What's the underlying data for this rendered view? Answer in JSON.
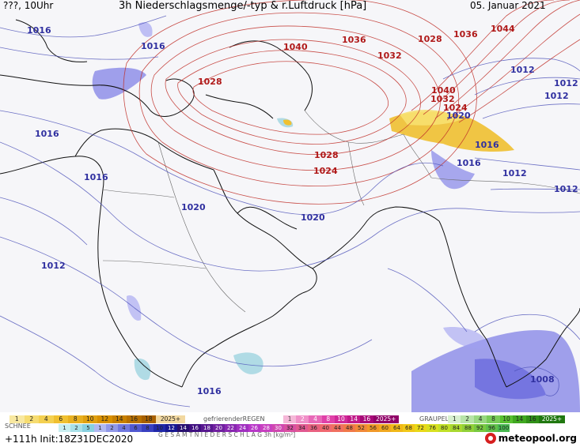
{
  "header": {
    "left": "???, 10Uhr",
    "title": "3h Niederschlagsmenge/-typ & r.Luftdruck [hPa]",
    "date": "05. Januar 2021"
  },
  "isobar_labels_red": [
    "1028",
    "1040",
    "1036",
    "1032",
    "1028",
    "1036",
    "1044",
    "1040",
    "1032",
    "1024",
    "1028",
    "1024"
  ],
  "isobar_labels_blue": [
    "1016",
    "1016",
    "1016",
    "1016",
    "1012",
    "1012",
    "1012",
    "1020",
    "1016",
    "1016",
    "1012",
    "1012",
    "1020",
    "1020",
    "1012",
    "1016",
    "1008"
  ],
  "legend": {
    "snow_label": "SCHNEE",
    "snow_values": [
      "1",
      "2",
      "4",
      "6",
      "8",
      "10",
      "12",
      "14",
      "16",
      "18",
      "2025+"
    ],
    "freezing_label": "gefrierenderREGEN",
    "freezing_values": [
      "1",
      "2",
      "4",
      "8",
      "10",
      "14",
      "16",
      "2025+"
    ],
    "graupel_label": "GRAUPEL",
    "graupel_values": [
      "1",
      "2",
      "4",
      "8",
      "10",
      "14",
      "16",
      "2025+"
    ],
    "total_label": "G E S A M T N I E D E R S C H L A G   3h   [kg/m²]",
    "total_values": [
      "1",
      "2",
      "5",
      "1",
      "2",
      "4",
      "6",
      "8",
      "10",
      "12",
      "14",
      "16",
      "18",
      "20",
      "22",
      "24",
      "26",
      "28",
      "30",
      "32",
      "34",
      "36",
      "40",
      "44",
      "48",
      "52",
      "56",
      "60",
      "64",
      "68",
      "72",
      "76",
      "80",
      "84",
      "88",
      "92",
      "96",
      "100"
    ]
  },
  "footer": {
    "run": "+111h  Init:18Z31DEC2020",
    "brand": "meteopool.org"
  },
  "colors": {
    "isobar_high": "#c0302a",
    "isobar_low": "#4a4fb8",
    "snow": "#f0b820",
    "rain": "#6a6ae0"
  }
}
